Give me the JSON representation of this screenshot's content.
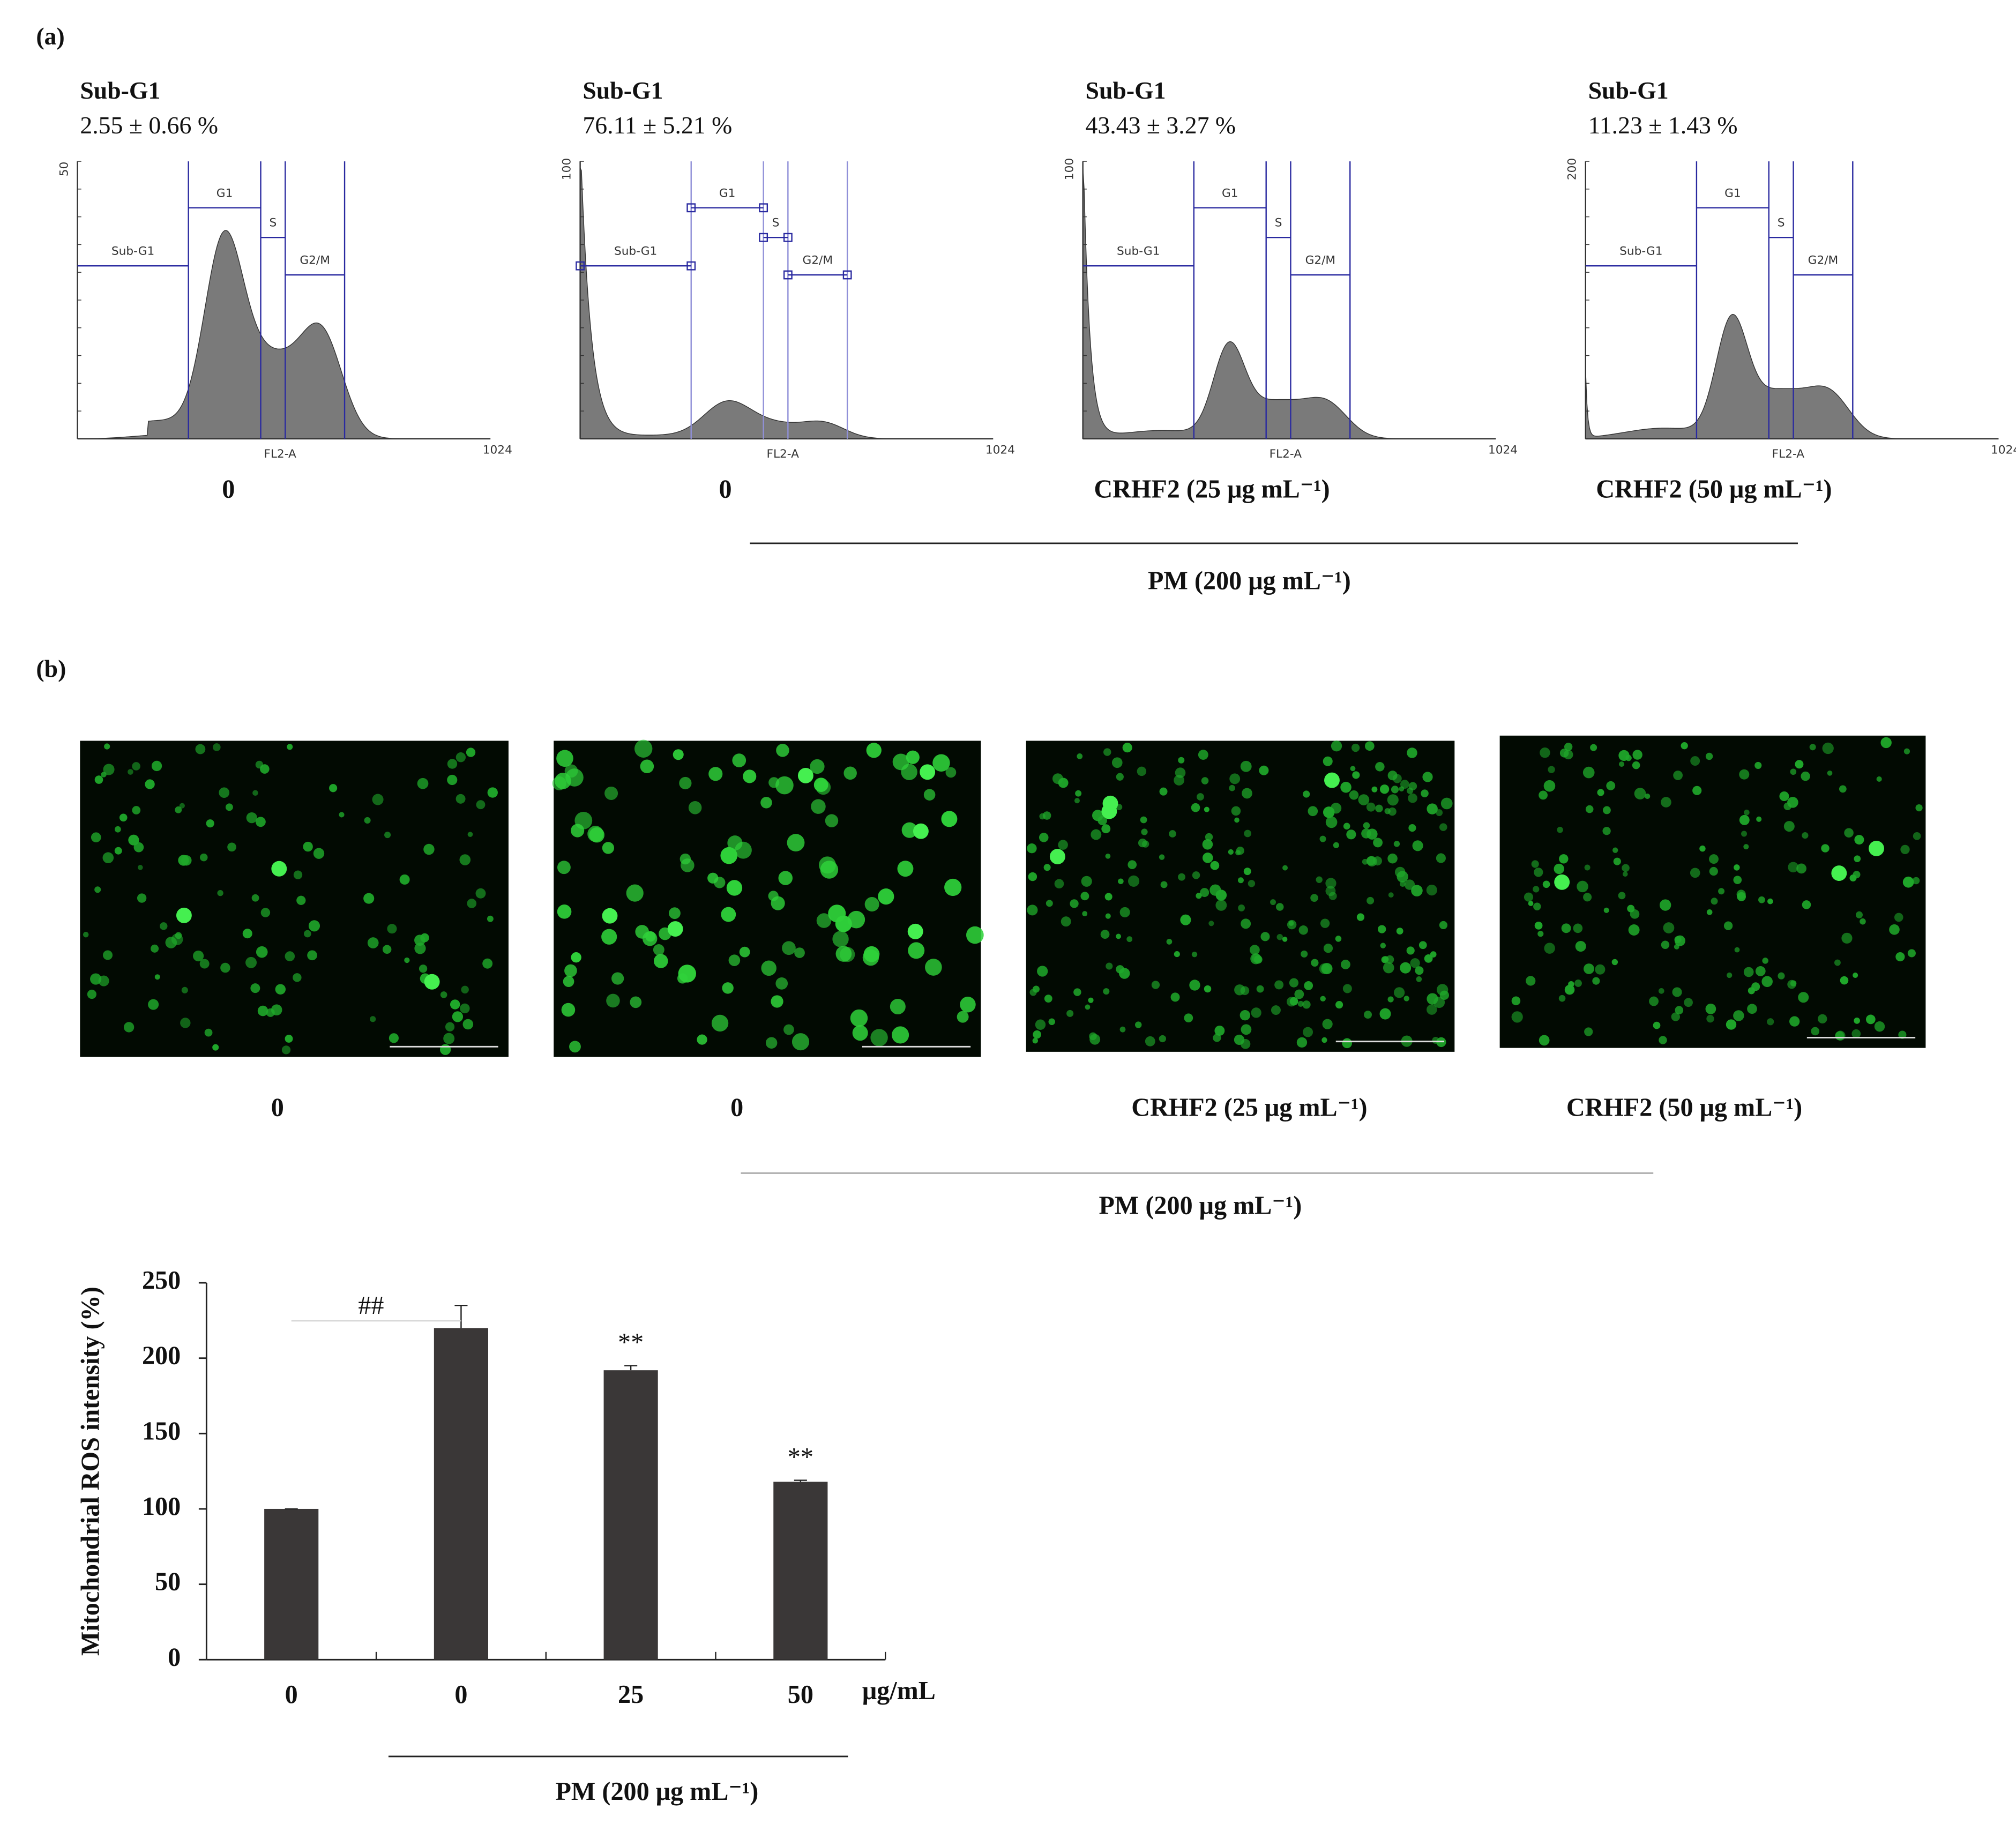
{
  "panel_a": {
    "label": "(a)",
    "gate_labels": [
      "Sub-G1",
      "G1",
      "S",
      "G2/M"
    ],
    "x_axis_label": "FL2-A",
    "x_max_label": "1024",
    "histograms": [
      {
        "title": "Sub-G1",
        "value": "2.55 ± 0.66 %",
        "y_max_label": "50",
        "condition": "0"
      },
      {
        "title": "Sub-G1",
        "value": "76.11 ± 5.21 %",
        "y_max_label": "100",
        "condition": "0"
      },
      {
        "title": "Sub-G1",
        "value": "43.43 ± 3.27 %",
        "y_max_label": "100",
        "condition": "CRHF2 (25 μg mL⁻¹)"
      },
      {
        "title": "Sub-G1",
        "value": "11.23 ± 1.43 %",
        "y_max_label": "200",
        "condition": "CRHF2 (50 μg mL⁻¹)"
      }
    ],
    "group_label": "PM (200 μg mL⁻¹)"
  },
  "panel_b": {
    "label": "(b)",
    "image_conditions": [
      "0",
      "0",
      "CRHF2 (25 μg mL⁻¹)",
      "CRHF2 (50 μg mL⁻¹)"
    ],
    "group_label": "PM (200 μg mL⁻¹)"
  },
  "chart_data": {
    "type": "bar",
    "y_label": "Mitochondrial ROS intensity (%)",
    "categories": [
      "0",
      "0",
      "25",
      "50"
    ],
    "unit_label": "μg/mL",
    "values": [
      100,
      220,
      192,
      118
    ],
    "errors": [
      0,
      15,
      3,
      1
    ],
    "significance": [
      null,
      "##",
      "**",
      "**"
    ],
    "color": "#3a3737",
    "ylim": [
      0,
      250
    ],
    "yticks": [
      0,
      50,
      100,
      150,
      200,
      250
    ],
    "group_label": "PM (200 μg mL⁻¹)"
  }
}
